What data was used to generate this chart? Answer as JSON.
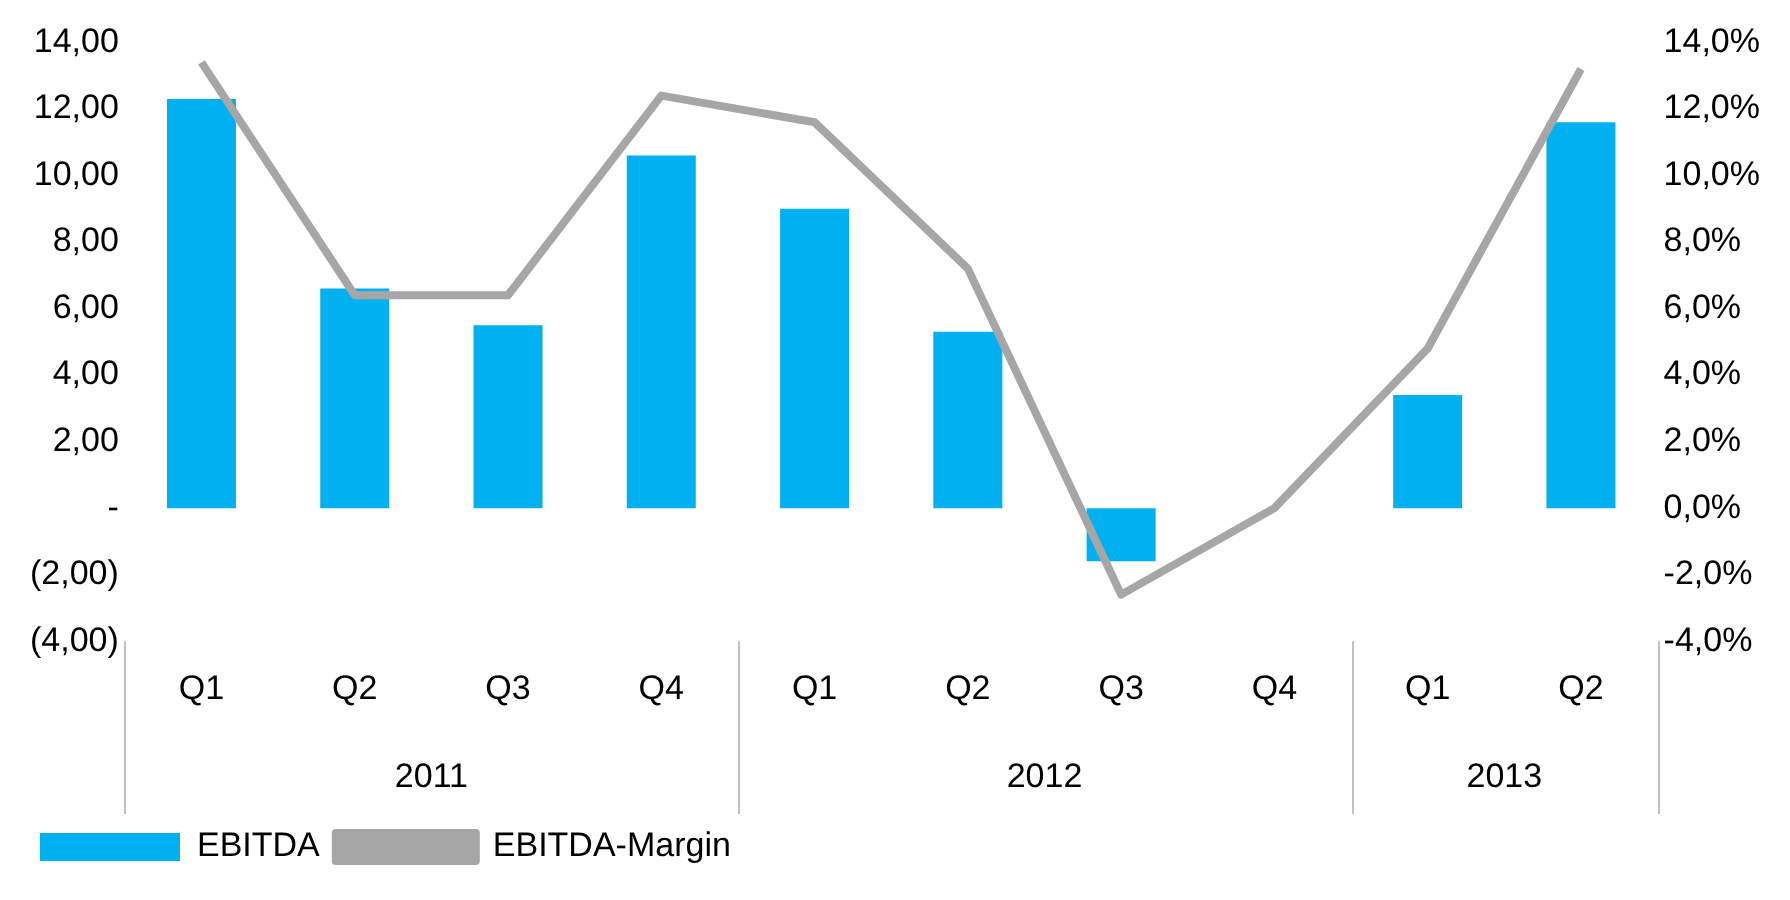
{
  "chart_data": {
    "type": "bar",
    "categories": [
      "Q1",
      "Q2",
      "Q3",
      "Q4",
      "Q1",
      "Q2",
      "Q3",
      "Q4",
      "Q1",
      "Q2"
    ],
    "series": [
      {
        "name": "EBITDA",
        "color": "#00b0f0",
        "values": [
          12.3,
          6.6,
          5.5,
          10.6,
          9.0,
          5.3,
          -1.6,
          null,
          3.4,
          11.6
        ]
      },
      {
        "name": "EBITDA-Margin",
        "type": "line",
        "axis": "y2",
        "color": "#a6a6a6",
        "values": [
          13.4,
          6.4,
          6.4,
          12.4,
          11.6,
          7.2,
          -2.6,
          0.0,
          4.8,
          13.2
        ]
      }
    ],
    "ylim": [
      -4,
      14
    ],
    "yticks": [
      {
        "value": -4,
        "label": "(4,00)"
      },
      {
        "value": -2,
        "label": "(2,00)"
      },
      {
        "value": 0,
        "label": "-"
      },
      {
        "value": 2,
        "label": "2,00"
      },
      {
        "value": 4,
        "label": "4,00"
      },
      {
        "value": 6,
        "label": "6,00"
      },
      {
        "value": 8,
        "label": "8,00"
      },
      {
        "value": 10,
        "label": "10,00"
      },
      {
        "value": 12,
        "label": "12,00"
      },
      {
        "value": 14,
        "label": "14,00"
      }
    ],
    "y2lim": [
      -4,
      14
    ],
    "y2ticks": [
      {
        "value": -4,
        "label": "-4,0%"
      },
      {
        "value": -2,
        "label": "-2,0%"
      },
      {
        "value": 0,
        "label": "0,0%"
      },
      {
        "value": 2,
        "label": "2,0%"
      },
      {
        "value": 4,
        "label": "4,0%"
      },
      {
        "value": 6,
        "label": "6,0%"
      },
      {
        "value": 8,
        "label": "8,0%"
      },
      {
        "value": 10,
        "label": "10,0%"
      },
      {
        "value": 12,
        "label": "12,0%"
      },
      {
        "value": 14,
        "label": "14,0%"
      }
    ],
    "annotations": [
      "2011",
      "2012",
      "2013"
    ],
    "grid": false,
    "legend": "bottom left",
    "marker": "none"
  }
}
